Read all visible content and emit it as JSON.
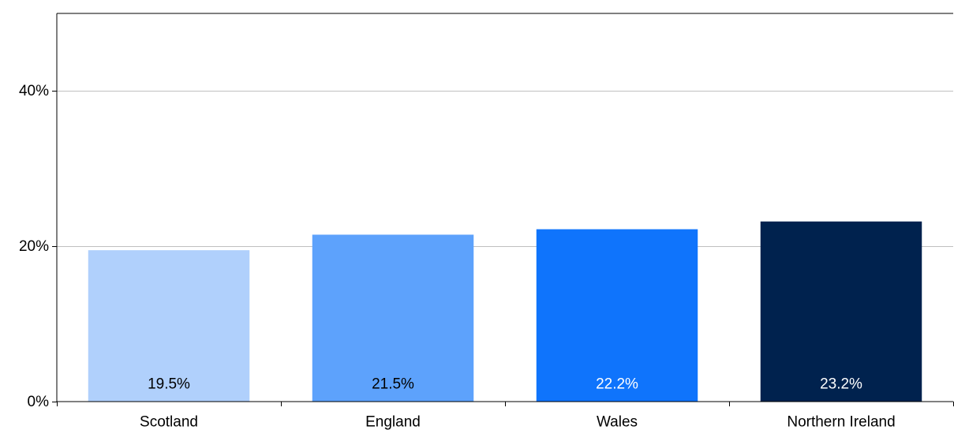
{
  "chart_data": {
    "type": "bar",
    "categories": [
      "Scotland",
      "England",
      "Wales",
      "Northern Ireland"
    ],
    "values": [
      19.5,
      21.5,
      22.2,
      23.2
    ],
    "data_labels": [
      "19.5%",
      "21.5%",
      "22.2%",
      "23.2%"
    ],
    "bar_colors": [
      "#b0d0fc",
      "#5da2fc",
      "#0f74fc",
      "#00224e"
    ],
    "data_label_colors": [
      "#000000",
      "#000000",
      "#ffffff",
      "#ffffff"
    ],
    "y_ticks": [
      {
        "value": 0,
        "label": "0%"
      },
      {
        "value": 20,
        "label": "20%"
      },
      {
        "value": 40,
        "label": "40%"
      }
    ],
    "ylim": [
      0,
      50
    ],
    "grid": true,
    "grid_color": "#c0c0c0",
    "legend": "none",
    "title": "",
    "xlabel": "",
    "ylabel": ""
  }
}
